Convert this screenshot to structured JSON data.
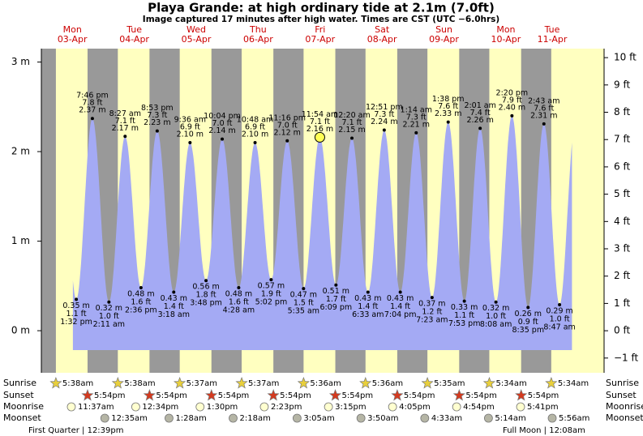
{
  "chart_data": {
    "type": "tide",
    "title": "Playa Grande: at high  ordinary tide at 2.1m (7.0ft)",
    "subtitle": "Image captured 17 minutes after high water. Times are CST (UTC −6.0hrs)",
    "ylim": [
      -0.47,
      3.15
    ],
    "yticks": [
      {
        "value": 3,
        "label": "3 m"
      },
      {
        "value": 2,
        "label": "2 m"
      },
      {
        "value": 1,
        "label": "1 m"
      },
      {
        "value": 0,
        "label": "0 m"
      }
    ],
    "y2lim": [
      -1.54,
      10.33
    ],
    "y2ticks": [
      {
        "value": 10,
        "label": "10 ft"
      },
      {
        "value": 9,
        "label": "9 ft"
      },
      {
        "value": 8,
        "label": "8 ft"
      },
      {
        "value": 7,
        "label": "7 ft"
      },
      {
        "value": 6,
        "label": "6 ft"
      },
      {
        "value": 5,
        "label": "5 ft"
      },
      {
        "value": 4,
        "label": "4 ft"
      },
      {
        "value": 3,
        "label": "3 ft"
      },
      {
        "value": 2,
        "label": "2 ft"
      },
      {
        "value": 1,
        "label": "1 ft"
      },
      {
        "value": 0,
        "label": "0 ft"
      },
      {
        "value": -1,
        "label": "−1 ft"
      }
    ],
    "colors": {
      "day": "#ffffc0",
      "night": "#999999",
      "water": "#a4aaf4",
      "day_label": "#cc0000",
      "sunrise": "#e8cf3c",
      "sunset": "#d43a1f",
      "moonrise": "#ffffd0",
      "moonset": "#b5b5a5",
      "current": "#ffff55"
    },
    "row_labels": {
      "sunrise": "Sunrise",
      "sunset": "Sunset",
      "moonrise": "Moonrise",
      "moonset": "Moonset"
    },
    "days": [
      {
        "weekday": "Mon",
        "date": "03-Apr",
        "sunrise": "5:38am",
        "sunset": "5:54pm",
        "moonrise": "11:37am",
        "tides": [
          {
            "time": "1:32 pm",
            "m": 0.35,
            "m_label": "0.35 m",
            "ft": 1.1,
            "ft_label": "1.1 ft"
          },
          {
            "time": "7:46 pm",
            "m": 2.37,
            "m_label": "2.37 m",
            "ft": 7.8,
            "ft_label": "7.8 ft"
          }
        ]
      },
      {
        "weekday": "Tue",
        "date": "04-Apr",
        "sunrise": "5:38am",
        "sunset": "5:54pm",
        "moonrise": "12:34pm",
        "moonset": "12:35am",
        "tides": [
          {
            "time": "2:11 am",
            "m": 0.32,
            "m_label": "0.32 m",
            "ft": 1.0,
            "ft_label": "1.0 ft"
          },
          {
            "time": "8:27 am",
            "m": 2.17,
            "m_label": "2.17 m",
            "ft": 7.1,
            "ft_label": "7.1 ft"
          },
          {
            "time": "2:36 pm",
            "m": 0.48,
            "m_label": "0.48 m",
            "ft": 1.6,
            "ft_label": "1.6 ft"
          },
          {
            "time": "8:53 pm",
            "m": 2.23,
            "m_label": "2.23 m",
            "ft": 7.3,
            "ft_label": "7.3 ft"
          }
        ]
      },
      {
        "weekday": "Wed",
        "date": "05-Apr",
        "sunrise": "5:37am",
        "sunset": "5:54pm",
        "moonrise": "1:30pm",
        "moonset": "1:28am",
        "tides": [
          {
            "time": "3:18 am",
            "m": 0.43,
            "m_label": "0.43 m",
            "ft": 1.4,
            "ft_label": "1.4 ft"
          },
          {
            "time": "9:36 am",
            "m": 2.1,
            "m_label": "2.10 m",
            "ft": 6.9,
            "ft_label": "6.9 ft"
          },
          {
            "time": "3:48 pm",
            "m": 0.56,
            "m_label": "0.56 m",
            "ft": 1.8,
            "ft_label": "1.8 ft"
          },
          {
            "time": "10:04 pm",
            "m": 2.14,
            "m_label": "2.14 m",
            "ft": 7.0,
            "ft_label": "7.0 ft"
          }
        ]
      },
      {
        "weekday": "Thu",
        "date": "06-Apr",
        "sunrise": "5:37am",
        "sunset": "5:54pm",
        "moonrise": "2:23pm",
        "moonset": "2:18am",
        "tides": [
          {
            "time": "4:28 am",
            "m": 0.48,
            "m_label": "0.48 m",
            "ft": 1.6,
            "ft_label": "1.6 ft"
          },
          {
            "time": "10:48 am",
            "m": 2.1,
            "m_label": "2.10 m",
            "ft": 6.9,
            "ft_label": "6.9 ft"
          },
          {
            "time": "5:02 pm",
            "m": 0.57,
            "m_label": "0.57 m",
            "ft": 1.9,
            "ft_label": "1.9 ft"
          },
          {
            "time": "11:16 pm",
            "m": 2.12,
            "m_label": "2.12 m",
            "ft": 7.0,
            "ft_label": "7.0 ft"
          }
        ]
      },
      {
        "weekday": "Fri",
        "date": "07-Apr",
        "sunrise": "5:36am",
        "sunset": "5:54pm",
        "moonrise": "3:15pm",
        "moonset": "3:05am",
        "tides": [
          {
            "time": "5:35 am",
            "m": 0.47,
            "m_label": "0.47 m",
            "ft": 1.5,
            "ft_label": "1.5 ft"
          },
          {
            "time": "11:54 am",
            "m": 2.16,
            "m_label": "2.16 m",
            "ft": 7.1,
            "ft_label": "7.1 ft",
            "current": true
          },
          {
            "time": "6:09 pm",
            "m": 0.51,
            "m_label": "0.51 m",
            "ft": 1.7,
            "ft_label": "1.7 ft"
          }
        ]
      },
      {
        "weekday": "Sat",
        "date": "08-Apr",
        "sunrise": "5:36am",
        "sunset": "5:54pm",
        "moonrise": "4:05pm",
        "moonset": "3:50am",
        "tides": [
          {
            "time": "12:20 am",
            "m": 2.15,
            "m_label": "2.15 m",
            "ft": 7.1,
            "ft_label": "7.1 ft"
          },
          {
            "time": "6:33 am",
            "m": 0.43,
            "m_label": "0.43 m",
            "ft": 1.4,
            "ft_label": "1.4 ft"
          },
          {
            "time": "12:51 pm",
            "m": 2.24,
            "m_label": "2.24 m",
            "ft": 7.3,
            "ft_label": "7.3 ft"
          },
          {
            "time": "7:04 pm",
            "m": 0.43,
            "m_label": "0.43 m",
            "ft": 1.4,
            "ft_label": "1.4 ft"
          }
        ]
      },
      {
        "weekday": "Sun",
        "date": "09-Apr",
        "sunrise": "5:35am",
        "sunset": "5:54pm",
        "moonrise": "4:54pm",
        "moonset": "4:33am",
        "tides": [
          {
            "time": "1:14 am",
            "m": 2.21,
            "m_label": "2.21 m",
            "ft": 7.3,
            "ft_label": "7.3 ft"
          },
          {
            "time": "7:23 am",
            "m": 0.37,
            "m_label": "0.37 m",
            "ft": 1.2,
            "ft_label": "1.2 ft"
          },
          {
            "time": "1:38 pm",
            "m": 2.33,
            "m_label": "2.33 m",
            "ft": 7.6,
            "ft_label": "7.6 ft"
          },
          {
            "time": "7:53 pm",
            "m": 0.33,
            "m_label": "0.33 m",
            "ft": 1.1,
            "ft_label": "1.1 ft"
          }
        ]
      },
      {
        "weekday": "Mon",
        "date": "10-Apr",
        "sunrise": "5:34am",
        "sunset": "5:54pm",
        "moonrise": "5:41pm",
        "moonset": "5:14am",
        "tides": [
          {
            "time": "2:01 am",
            "m": 2.26,
            "m_label": "2.26 m",
            "ft": 7.4,
            "ft_label": "7.4 ft"
          },
          {
            "time": "8:08 am",
            "m": 0.32,
            "m_label": "0.32 m",
            "ft": 1.0,
            "ft_label": "1.0 ft"
          },
          {
            "time": "2:20 pm",
            "m": 2.4,
            "m_label": "2.40 m",
            "ft": 7.9,
            "ft_label": "7.9 ft"
          },
          {
            "time": "8:35 pm",
            "m": 0.26,
            "m_label": "0.26 m",
            "ft": 0.9,
            "ft_label": "0.9 ft"
          }
        ]
      },
      {
        "weekday": "Tue",
        "date": "11-Apr",
        "sunrise": "5:34am",
        "moonset": "5:56am",
        "tides": [
          {
            "time": "2:43 am",
            "m": 2.31,
            "m_label": "2.31 m",
            "ft": 7.6,
            "ft_label": "7.6 ft"
          },
          {
            "time": "8:47 am",
            "m": 0.29,
            "m_label": "0.29 m",
            "ft": 1.0,
            "ft_label": "1.0 ft"
          }
        ]
      }
    ],
    "notes": [
      "First Quarter | 12:39pm",
      "Full Moon | 12:08am"
    ]
  }
}
